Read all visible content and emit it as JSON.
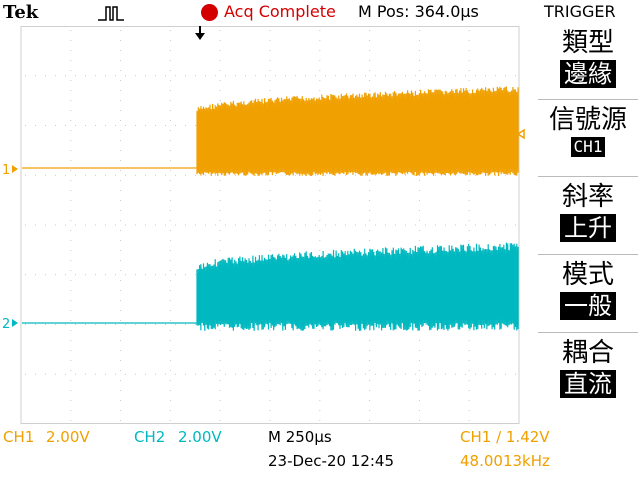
{
  "topbar": {
    "brand": "Tek",
    "acquisition_status": "Acq Complete",
    "main_position": "M Pos: 364.0µs",
    "menu_title": "TRIGGER"
  },
  "trigger_menu": [
    {
      "caption": "類型",
      "value": "邊緣"
    },
    {
      "caption": "信號源",
      "value": "CH1"
    },
    {
      "caption": "斜率",
      "value": "上升"
    },
    {
      "caption": "模式",
      "value": "一般"
    },
    {
      "caption": "耦合",
      "value": "直流"
    }
  ],
  "channels": {
    "ch1": {
      "marker": "1",
      "scale_label": "CH1",
      "scale_value": "2.00V",
      "color": "#f0a000"
    },
    "ch2": {
      "marker": "2",
      "scale_label": "CH2",
      "scale_value": "2.00V",
      "color": "#00b8c0"
    }
  },
  "status_bar": {
    "timebase": "M 250µs",
    "trigger_info": "CH1 ∕ 1.42V",
    "date_time": "23-Dec-20 12:45",
    "frequency": "48.0013kHz"
  },
  "icons": {
    "pulse": "pulse-icon",
    "trigger_position": "trigger-position-arrow-icon",
    "trigger_level": "trigger-level-arrow-icon",
    "acquisition": "acq-status-dot-icon"
  }
}
